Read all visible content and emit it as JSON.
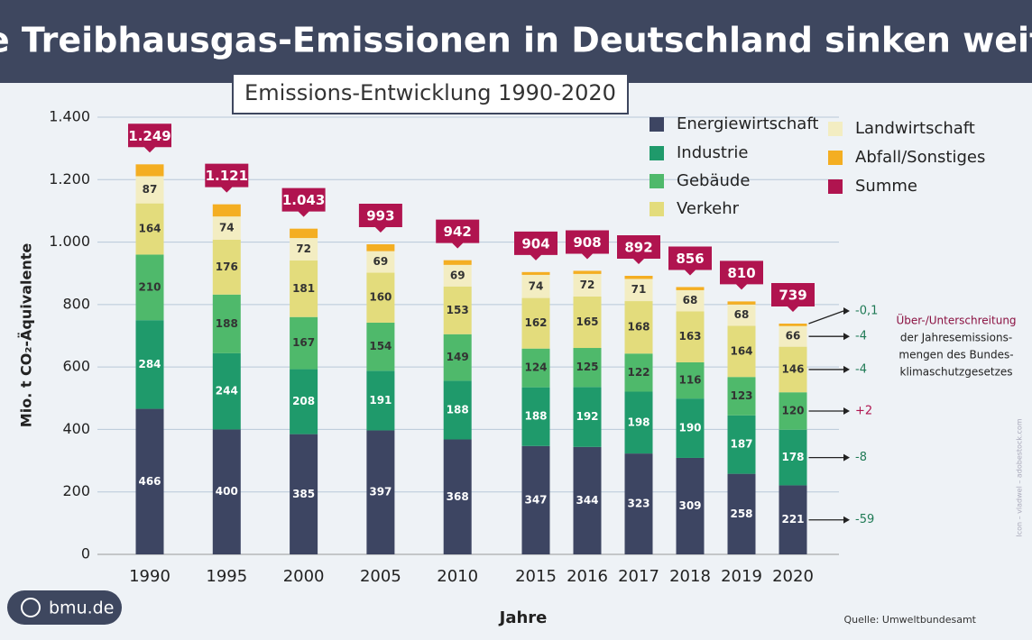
{
  "chart_data": {
    "type": "stacked_bar",
    "title": "Die Treibhausgas-Emissionen in Deutschland sinken weiter",
    "subtitle": "Emissions-Entwicklung 1990-2020",
    "y_label": "Mio. t CO₂-Äquivalente",
    "x_label": "Jahre",
    "source": "Quelle: Umweltbundesamt",
    "logo": "bmu.de",
    "credit": "Icon – vladwel – adobestock.com",
    "categories": [
      "1990",
      "1995",
      "2000",
      "2005",
      "2010",
      "2015",
      "2016",
      "2017",
      "2018",
      "2019",
      "2020"
    ],
    "series": [
      {
        "name": "Energiewirtschaft",
        "color": "#3d4562",
        "values": [
          466,
          400,
          385,
          397,
          368,
          347,
          344,
          323,
          309,
          258,
          221
        ]
      },
      {
        "name": "Industrie",
        "color": "#1f9a6b",
        "values": [
          284,
          244,
          208,
          191,
          188,
          188,
          192,
          198,
          190,
          187,
          178
        ]
      },
      {
        "name": "Gebäude",
        "color": "#4fb96b",
        "values": [
          210,
          188,
          167,
          154,
          149,
          124,
          125,
          122,
          116,
          123,
          120
        ]
      },
      {
        "name": "Verkehr",
        "color": "#e3dc7c",
        "values": [
          164,
          176,
          181,
          160,
          153,
          162,
          165,
          168,
          163,
          164,
          146
        ]
      },
      {
        "name": "Landwirtschaft",
        "color": "#f3edc2",
        "values": [
          87,
          74,
          72,
          69,
          69,
          74,
          72,
          71,
          68,
          68,
          66
        ]
      },
      {
        "name": "Abfall/Sonstiges",
        "color": "#f4ae22",
        "values": [
          38,
          39,
          30,
          22,
          15,
          9,
          10,
          10,
          10,
          10,
          8
        ]
      }
    ],
    "total": {
      "name": "Summe",
      "color": "#b0144f",
      "values": [
        1249,
        1121,
        1043,
        993,
        942,
        904,
        908,
        892,
        856,
        810,
        739
      ],
      "value_labels": [
        "1.249",
        "1.121",
        "1.043",
        "993",
        "942",
        "904",
        "908",
        "892",
        "856",
        "810",
        "739"
      ]
    },
    "ylim": [
      0,
      1400
    ],
    "yticks": [
      0,
      200,
      400,
      600,
      800,
      {
        "value": 1000,
        "label": "1.000"
      },
      {
        "value": 1200,
        "label": "1.200"
      },
      {
        "value": 1400,
        "label": "1.400"
      }
    ],
    "grid": true,
    "deviations": [
      -59,
      -8,
      {
        "value": 2,
        "label": "+2"
      },
      -4,
      -4,
      {
        "value": -0.1,
        "label": "-0,1"
      }
    ],
    "deviation_note": [
      "Über-/Unterschreitung",
      "der Jahresemissions-",
      "mengen des Bundes-",
      "klimaschutzgesetzes"
    ]
  }
}
